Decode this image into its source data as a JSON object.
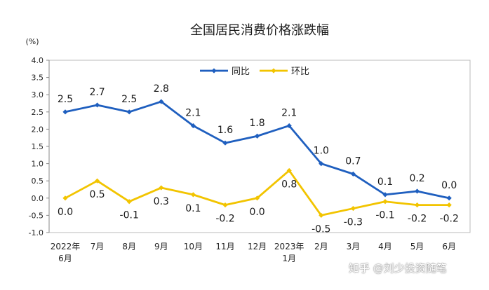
{
  "chart_data": {
    "type": "line",
    "title": "全国居民消费价格涨跌幅",
    "y_unit": "(%)",
    "ylim": [
      -1.0,
      4.0
    ],
    "y_ticks": [
      "4.0",
      "3.5",
      "3.0",
      "2.5",
      "2.0",
      "1.5",
      "1.0",
      "0.5",
      "0.0",
      "-0.5",
      "-1.0"
    ],
    "categories": [
      [
        "2022年",
        "6月"
      ],
      [
        "7月"
      ],
      [
        "8月"
      ],
      [
        "9月"
      ],
      [
        "10月"
      ],
      [
        "11月"
      ],
      [
        "12月"
      ],
      [
        "2023年",
        "1月"
      ],
      [
        "2月"
      ],
      [
        "3月"
      ],
      [
        "4月"
      ],
      [
        "5月"
      ],
      [
        "6月"
      ]
    ],
    "legend_position": "top-center",
    "grid": false,
    "series": [
      {
        "name": "同比",
        "color": "#1f5fbf",
        "values": [
          2.5,
          2.7,
          2.5,
          2.8,
          2.1,
          1.6,
          1.8,
          2.1,
          1.0,
          0.7,
          0.1,
          0.2,
          0.0
        ],
        "labels": [
          "2.5",
          "2.7",
          "2.5",
          "2.8",
          "2.1",
          "1.6",
          "1.8",
          "2.1",
          "1.0",
          "0.7",
          "0.1",
          "0.2",
          "0.0"
        ]
      },
      {
        "name": "环比",
        "color": "#f2c400",
        "values": [
          0.0,
          0.5,
          -0.1,
          0.3,
          0.1,
          -0.2,
          0.0,
          0.8,
          -0.5,
          -0.3,
          -0.1,
          -0.2,
          -0.2
        ],
        "labels": [
          "0.0",
          "0.5",
          "-0.1",
          "0.3",
          "0.1",
          "-0.2",
          "0.0",
          "0.8",
          "-0.5",
          "-0.3",
          "-0.1",
          "-0.2",
          "-0.2"
        ]
      }
    ]
  },
  "watermark": "知乎 @刘少投资随笔"
}
